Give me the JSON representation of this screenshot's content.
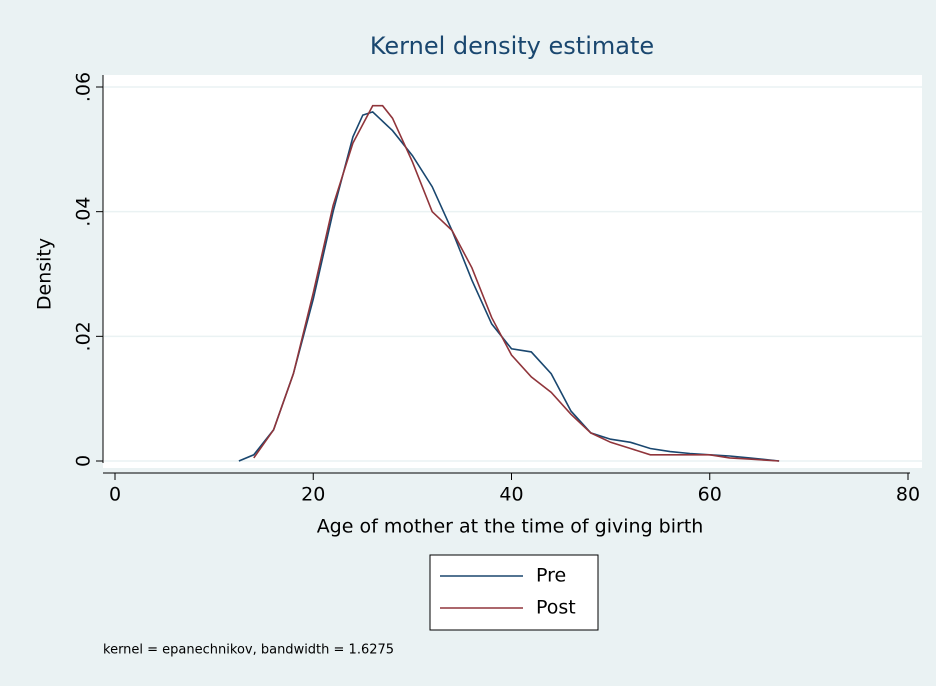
{
  "chart_data": {
    "type": "line",
    "title": "Kernel density estimate",
    "x_label": "Age of mother at the time of giving birth",
    "y_label": "Density",
    "note": "kernel = epanechnikov, bandwidth = 1.6275",
    "xlim": [
      0,
      80
    ],
    "xticks": [
      0,
      20,
      40,
      60,
      80
    ],
    "ylim": [
      0,
      0.06
    ],
    "yticks": [
      0,
      {
        "value": 0.02,
        "label": ".02"
      },
      {
        "value": 0.04,
        "label": ".04"
      },
      {
        "value": 0.06,
        "label": ".06"
      }
    ],
    "grid": true,
    "legend_position": "bottom",
    "series": [
      {
        "name": "Pre",
        "color": "#1a476f",
        "x": [
          12.5,
          14,
          16,
          18,
          20,
          22,
          24,
          25,
          26,
          28,
          30,
          32,
          34,
          36,
          38,
          40,
          42,
          44,
          46,
          48,
          50,
          52,
          54,
          56,
          58,
          60,
          62,
          64,
          67
        ],
        "values": [
          0,
          0.001,
          0.005,
          0.014,
          0.026,
          0.04,
          0.052,
          0.0555,
          0.056,
          0.053,
          0.049,
          0.044,
          0.037,
          0.029,
          0.022,
          0.018,
          0.0175,
          0.014,
          0.008,
          0.0045,
          0.0035,
          0.003,
          0.002,
          0.0015,
          0.0012,
          0.001,
          0.0008,
          0.0005,
          0
        ]
      },
      {
        "name": "Post",
        "color": "#90353b",
        "x": [
          14,
          16,
          18,
          20,
          22,
          24,
          26,
          27,
          28,
          30,
          32,
          34,
          36,
          38,
          40,
          42,
          44,
          46,
          48,
          50,
          52,
          54,
          56,
          58,
          60,
          62,
          64,
          67
        ],
        "values": [
          0.0005,
          0.005,
          0.014,
          0.027,
          0.041,
          0.051,
          0.057,
          0.057,
          0.055,
          0.048,
          0.04,
          0.037,
          0.031,
          0.023,
          0.017,
          0.0135,
          0.011,
          0.0075,
          0.0045,
          0.003,
          0.002,
          0.001,
          0.001,
          0.001,
          0.001,
          0.0005,
          0.0003,
          0
        ]
      }
    ]
  }
}
